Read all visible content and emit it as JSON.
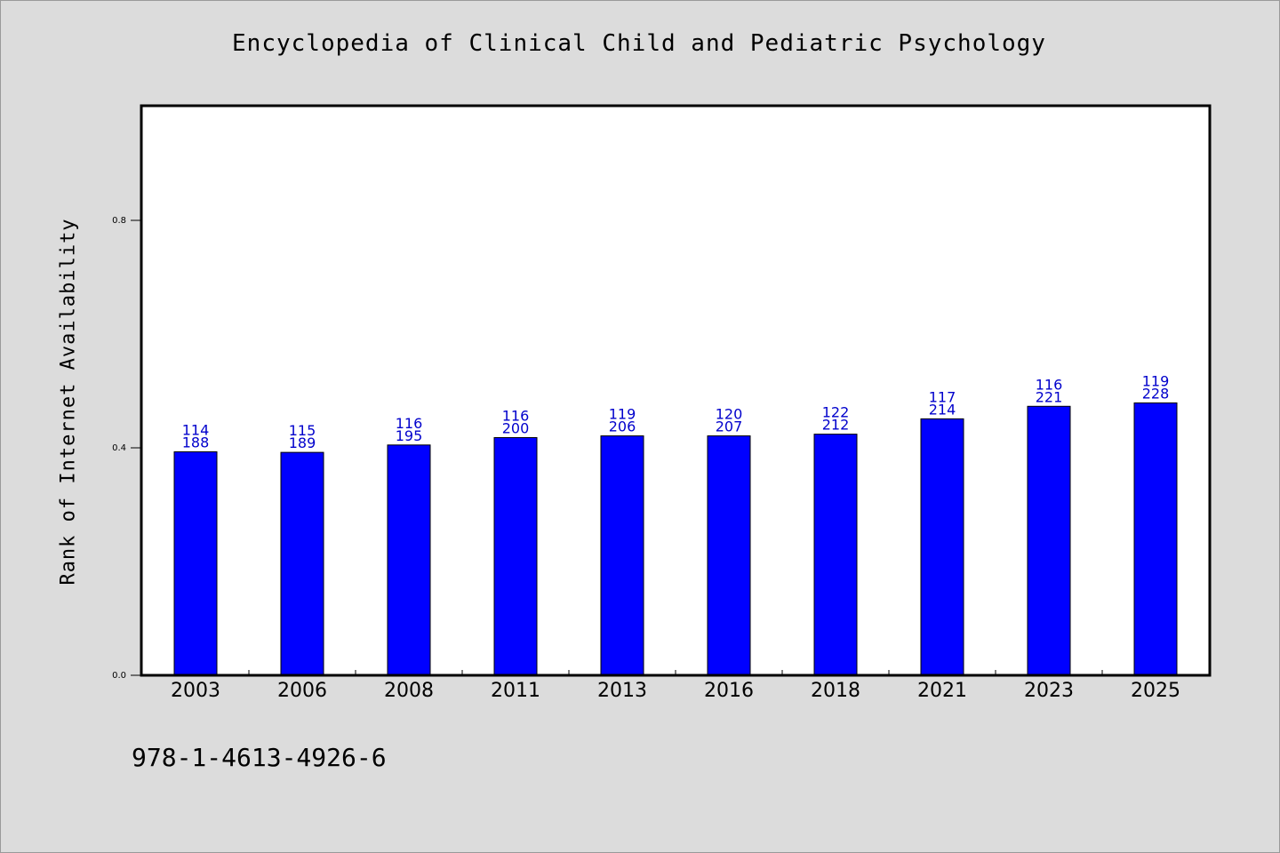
{
  "chart_data": {
    "type": "bar",
    "title": "Encyclopedia of Clinical Child and Pediatric Psychology",
    "ylabel": "Rank of Internet Availability",
    "xlabel": "",
    "categories": [
      "2003",
      "2006",
      "2008",
      "2011",
      "2013",
      "2016",
      "2018",
      "2021",
      "2023",
      "2025"
    ],
    "values": [
      0.393,
      0.392,
      0.405,
      0.418,
      0.421,
      0.421,
      0.424,
      0.451,
      0.473,
      0.479
    ],
    "data_labels": [
      [
        "114",
        "188"
      ],
      [
        "115",
        "189"
      ],
      [
        "116",
        "195"
      ],
      [
        "116",
        "200"
      ],
      [
        "119",
        "206"
      ],
      [
        "120",
        "207"
      ],
      [
        "122",
        "212"
      ],
      [
        "117",
        "214"
      ],
      [
        "116",
        "221"
      ],
      [
        "119",
        "228"
      ]
    ],
    "ylim": [
      0,
      1.0
    ],
    "yticks": [
      "0.0",
      "0.4",
      "0.8"
    ],
    "grid": false,
    "colors": {
      "bar": "#0000ff",
      "bar_edge": "#000000",
      "data_label": "#0000cc",
      "background": "#dcdcdc",
      "plot_background": "#ffffff"
    }
  },
  "footer": {
    "isbn": "978-1-4613-4926-6"
  }
}
